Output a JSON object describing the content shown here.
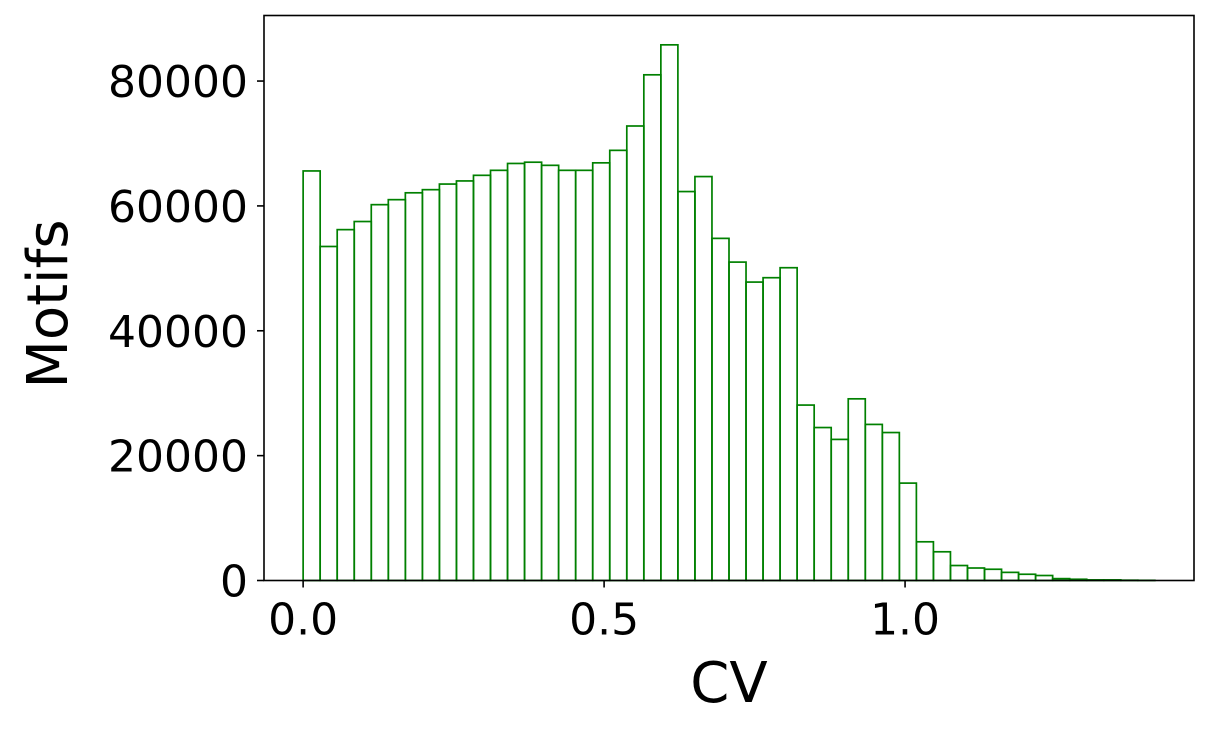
{
  "chart_data": {
    "type": "bar",
    "subtype": "histogram",
    "title": "",
    "xlabel": "CV",
    "ylabel": "Motifs",
    "xlim": [
      -0.065,
      1.48
    ],
    "ylim": [
      0,
      90500
    ],
    "xticks": [
      0.0,
      0.5,
      1.0
    ],
    "xtick_labels": [
      "0.0",
      "0.5",
      "1.0"
    ],
    "yticks": [
      0,
      20000,
      40000,
      60000,
      80000
    ],
    "ytick_labels": [
      "0",
      "20000",
      "40000",
      "60000",
      "80000"
    ],
    "bin_width": 0.0283,
    "bin_start": 0.0,
    "values": [
      65600,
      53500,
      56200,
      57500,
      60200,
      61000,
      62100,
      62600,
      63500,
      64000,
      64900,
      65700,
      66800,
      67000,
      66500,
      65700,
      65700,
      66900,
      68900,
      72800,
      81000,
      85800,
      62300,
      64700,
      54800,
      51000,
      47800,
      48500,
      50100,
      28100,
      24500,
      22600,
      29100,
      25000,
      23700,
      15600,
      6200,
      4600,
      2400,
      2000,
      1800,
      1300,
      1000,
      800,
      300,
      200,
      100,
      100,
      50,
      30
    ],
    "color": "#008000",
    "grid": false,
    "legend": "none"
  }
}
